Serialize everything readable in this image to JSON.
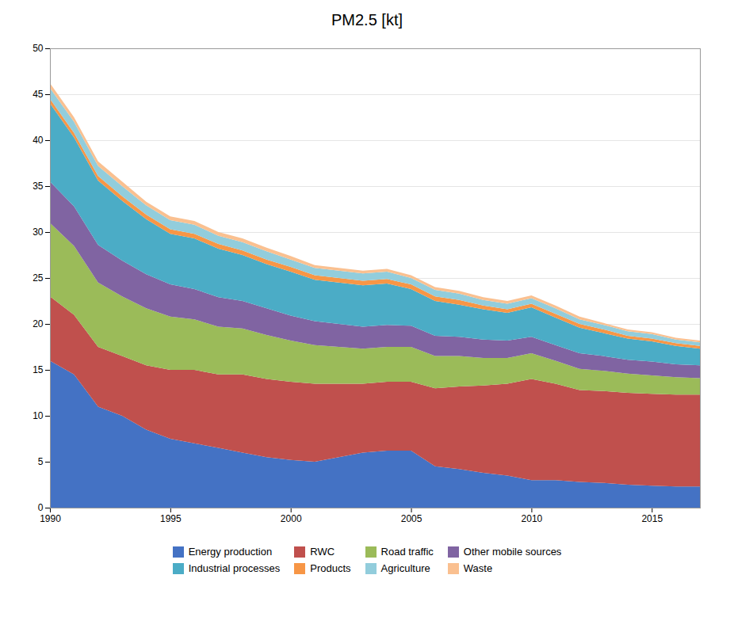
{
  "chart_data": {
    "type": "area",
    "title": "PM2.5 [kt]",
    "stacked": true,
    "x": [
      1990,
      1991,
      1992,
      1993,
      1994,
      1995,
      1996,
      1997,
      1998,
      1999,
      2000,
      2001,
      2002,
      2003,
      2004,
      2005,
      2006,
      2007,
      2008,
      2009,
      2010,
      2011,
      2012,
      2013,
      2014,
      2015,
      2016,
      2017
    ],
    "series": [
      {
        "name": "Energy production",
        "color": "#4472C4",
        "values": [
          16.0,
          14.5,
          11.0,
          10.0,
          8.5,
          7.5,
          7.0,
          6.5,
          6.0,
          5.5,
          5.2,
          5.0,
          5.5,
          6.0,
          6.2,
          6.2,
          4.5,
          4.2,
          3.8,
          3.5,
          3.0,
          3.0,
          2.8,
          2.7,
          2.5,
          2.4,
          2.3,
          2.3
        ]
      },
      {
        "name": "RWC",
        "color": "#C0504D",
        "values": [
          7.0,
          6.5,
          6.5,
          6.5,
          7.0,
          7.5,
          8.0,
          8.0,
          8.5,
          8.5,
          8.5,
          8.5,
          8.0,
          7.5,
          7.5,
          7.5,
          8.5,
          9.0,
          9.5,
          10.0,
          11.0,
          10.5,
          10.0,
          10.0,
          10.0,
          10.0,
          10.0,
          10.0
        ]
      },
      {
        "name": "Road traffic",
        "color": "#9BBB59",
        "values": [
          8.0,
          7.5,
          7.0,
          6.5,
          6.2,
          5.8,
          5.5,
          5.2,
          5.0,
          4.8,
          4.5,
          4.2,
          4.0,
          3.8,
          3.8,
          3.8,
          3.5,
          3.3,
          3.0,
          2.8,
          2.8,
          2.5,
          2.3,
          2.2,
          2.1,
          2.0,
          1.9,
          1.8
        ]
      },
      {
        "name": "Other mobile sources",
        "color": "#8064A2",
        "values": [
          4.5,
          4.3,
          4.1,
          3.9,
          3.7,
          3.5,
          3.3,
          3.2,
          3.0,
          2.9,
          2.7,
          2.6,
          2.5,
          2.4,
          2.4,
          2.3,
          2.2,
          2.1,
          2.0,
          1.9,
          1.8,
          1.7,
          1.7,
          1.6,
          1.5,
          1.5,
          1.4,
          1.4
        ]
      },
      {
        "name": "Industrial processes",
        "color": "#4BACC6",
        "values": [
          8.5,
          7.5,
          7.0,
          6.5,
          6.0,
          5.5,
          5.5,
          5.3,
          5.0,
          4.8,
          4.8,
          4.5,
          4.5,
          4.5,
          4.5,
          4.0,
          3.8,
          3.5,
          3.3,
          3.0,
          3.2,
          3.0,
          2.8,
          2.5,
          2.3,
          2.2,
          2.0,
          1.8
        ]
      },
      {
        "name": "Products",
        "color": "#F79646",
        "values": [
          0.5,
          0.5,
          0.5,
          0.5,
          0.5,
          0.5,
          0.5,
          0.5,
          0.5,
          0.5,
          0.5,
          0.5,
          0.5,
          0.5,
          0.5,
          0.5,
          0.5,
          0.5,
          0.4,
          0.4,
          0.4,
          0.4,
          0.4,
          0.4,
          0.3,
          0.3,
          0.3,
          0.3
        ]
      },
      {
        "name": "Agriculture",
        "color": "#92CDDC",
        "values": [
          1.2,
          1.2,
          1.1,
          1.1,
          1.0,
          1.0,
          1.0,
          0.9,
          0.9,
          0.9,
          0.8,
          0.8,
          0.8,
          0.8,
          0.8,
          0.7,
          0.7,
          0.7,
          0.6,
          0.6,
          0.6,
          0.6,
          0.5,
          0.5,
          0.5,
          0.5,
          0.4,
          0.4
        ]
      },
      {
        "name": "Waste",
        "color": "#FAC090",
        "values": [
          0.5,
          0.5,
          0.5,
          0.5,
          0.4,
          0.4,
          0.4,
          0.4,
          0.4,
          0.4,
          0.4,
          0.3,
          0.3,
          0.3,
          0.3,
          0.3,
          0.3,
          0.3,
          0.3,
          0.3,
          0.3,
          0.3,
          0.3,
          0.2,
          0.2,
          0.2,
          0.2,
          0.2
        ]
      }
    ],
    "xlim": [
      1990,
      2017
    ],
    "xticks": [
      1990,
      1995,
      2000,
      2005,
      2010,
      2015
    ],
    "ylim": [
      0,
      50
    ],
    "yticks": [
      0,
      5,
      10,
      15,
      20,
      25,
      30,
      35,
      40,
      45,
      50
    ],
    "grid": true,
    "legend": "bottom"
  }
}
